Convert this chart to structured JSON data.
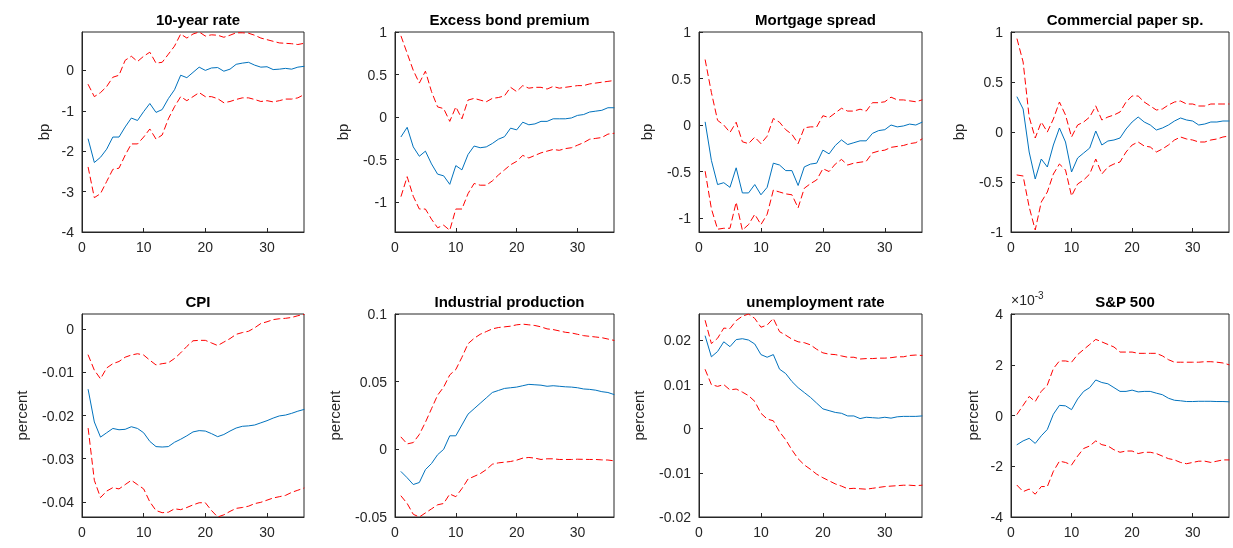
{
  "chart_data": [
    {
      "type": "line",
      "title": "10-year rate",
      "ylabel": "bp",
      "x": [
        1,
        2,
        3,
        4,
        5,
        6,
        7,
        8,
        9,
        10,
        11,
        12,
        13,
        14,
        15,
        16,
        17,
        18,
        19,
        20,
        21,
        22,
        23,
        24,
        25,
        26,
        27,
        28,
        29,
        30,
        31,
        32,
        33,
        34,
        35,
        36
      ],
      "xlim": [
        0,
        36
      ],
      "xticks": [
        0,
        10,
        20,
        30
      ],
      "ylim": [
        -4,
        0.95
      ],
      "yticks": [
        -4,
        -3,
        -2,
        -1,
        0
      ],
      "grid": false,
      "marker": "none",
      "series": [
        {
          "color": "#0072bd",
          "line_style": "solid",
          "values": [
            -1.7,
            -2.28,
            -2.15,
            -1.95,
            -1.65,
            -1.65,
            -1.4,
            -1.18,
            -1.24,
            -1.02,
            -0.82,
            -1.04,
            -0.97,
            -0.7,
            -0.48,
            -0.12,
            -0.18,
            -0.05,
            0.08,
            0,
            0.06,
            0.07,
            -0.02,
            0.03,
            0.15,
            0.18,
            0.2,
            0.13,
            0.08,
            0.09,
            0.02,
            0.03,
            0.05,
            0.03,
            0.08,
            0.1
          ]
        },
        {
          "color": "#ff0000",
          "line_style": "dashed",
          "values": [
            -0.35,
            -0.65,
            -0.55,
            -0.4,
            -0.17,
            -0.12,
            0.25,
            0.35,
            0.22,
            0.35,
            0.45,
            0.18,
            0.2,
            0.4,
            0.6,
            0.9,
            0.8,
            0.9,
            0.95,
            0.85,
            0.88,
            0.87,
            0.82,
            0.87,
            0.93,
            0.93,
            0.92,
            0.87,
            0.8,
            0.76,
            0.72,
            0.68,
            0.67,
            0.66,
            0.64,
            0.67
          ]
        },
        {
          "color": "#ff0000",
          "line_style": "dashed",
          "values": [
            -2.4,
            -3.15,
            -3.05,
            -2.75,
            -2.45,
            -2.42,
            -2.1,
            -1.82,
            -1.82,
            -1.65,
            -1.45,
            -1.7,
            -1.6,
            -1.2,
            -0.9,
            -0.65,
            -0.75,
            -0.65,
            -0.55,
            -0.65,
            -0.65,
            -0.7,
            -0.8,
            -0.77,
            -0.72,
            -0.68,
            -0.68,
            -0.72,
            -0.77,
            -0.75,
            -0.78,
            -0.75,
            -0.71,
            -0.71,
            -0.68,
            -0.6
          ]
        }
      ]
    },
    {
      "type": "line",
      "title": "Excess bond premium",
      "ylabel": "bp",
      "x": [
        1,
        2,
        3,
        4,
        5,
        6,
        7,
        8,
        9,
        10,
        11,
        12,
        13,
        14,
        15,
        16,
        17,
        18,
        19,
        20,
        21,
        22,
        23,
        24,
        25,
        26,
        27,
        28,
        29,
        30,
        31,
        32,
        33,
        34,
        35,
        36
      ],
      "xlim": [
        0,
        36
      ],
      "xticks": [
        0,
        10,
        20,
        30
      ],
      "ylim": [
        -1.35,
        1
      ],
      "yticks": [
        -1,
        -0.5,
        0,
        0.5,
        1
      ],
      "grid": false,
      "marker": "none",
      "series": [
        {
          "color": "#0072bd",
          "line_style": "solid",
          "values": [
            -0.23,
            -0.12,
            -0.35,
            -0.46,
            -0.4,
            -0.55,
            -0.67,
            -0.69,
            -0.79,
            -0.57,
            -0.62,
            -0.44,
            -0.34,
            -0.36,
            -0.35,
            -0.31,
            -0.26,
            -0.23,
            -0.13,
            -0.15,
            -0.06,
            -0.09,
            -0.08,
            -0.05,
            -0.05,
            -0.02,
            -0.02,
            -0.02,
            -0.01,
            0.02,
            0.03,
            0.06,
            0.07,
            0.08,
            0.11,
            0.11
          ]
        },
        {
          "color": "#ff0000",
          "line_style": "dashed",
          "values": [
            0.95,
            0.75,
            0.55,
            0.4,
            0.54,
            0.3,
            0.12,
            0.1,
            -0.05,
            0.12,
            -0.02,
            0.2,
            0.22,
            0.2,
            0.18,
            0.22,
            0.23,
            0.25,
            0.35,
            0.3,
            0.37,
            0.34,
            0.35,
            0.35,
            0.33,
            0.36,
            0.34,
            0.35,
            0.36,
            0.37,
            0.37,
            0.39,
            0.4,
            0.41,
            0.42,
            0.43
          ]
        },
        {
          "color": "#ff0000",
          "line_style": "dashed",
          "values": [
            -0.93,
            -0.7,
            -0.93,
            -1.08,
            -1.08,
            -1.2,
            -1.3,
            -1.27,
            -1.33,
            -1.08,
            -1.08,
            -0.9,
            -0.78,
            -0.8,
            -0.8,
            -0.75,
            -0.68,
            -0.62,
            -0.56,
            -0.52,
            -0.45,
            -0.48,
            -0.45,
            -0.42,
            -0.4,
            -0.38,
            -0.39,
            -0.37,
            -0.36,
            -0.33,
            -0.3,
            -0.26,
            -0.25,
            -0.24,
            -0.2,
            -0.19
          ]
        }
      ]
    },
    {
      "type": "line",
      "title": "Mortgage spread",
      "ylabel": "bp",
      "x": [
        1,
        2,
        3,
        4,
        5,
        6,
        7,
        8,
        9,
        10,
        11,
        12,
        13,
        14,
        15,
        16,
        17,
        18,
        19,
        20,
        21,
        22,
        23,
        24,
        25,
        26,
        27,
        28,
        29,
        30,
        31,
        32,
        33,
        34,
        35,
        36
      ],
      "xlim": [
        0,
        36
      ],
      "xticks": [
        0,
        10,
        20,
        30
      ],
      "ylim": [
        -1.15,
        1
      ],
      "yticks": [
        -1,
        -0.5,
        0,
        0.5,
        1
      ],
      "grid": false,
      "marker": "none",
      "series": [
        {
          "color": "#0072bd",
          "line_style": "solid",
          "values": [
            0.03,
            -0.38,
            -0.64,
            -0.62,
            -0.67,
            -0.46,
            -0.73,
            -0.73,
            -0.64,
            -0.75,
            -0.67,
            -0.41,
            -0.43,
            -0.49,
            -0.49,
            -0.65,
            -0.45,
            -0.42,
            -0.41,
            -0.27,
            -0.31,
            -0.22,
            -0.16,
            -0.21,
            -0.19,
            -0.17,
            -0.17,
            -0.09,
            -0.06,
            -0.05,
            0,
            -0.02,
            -0.01,
            0.01,
            0,
            0.03
          ]
        },
        {
          "color": "#ff0000",
          "line_style": "dashed",
          "values": [
            0.7,
            0.35,
            0.05,
            0,
            -0.08,
            0.03,
            -0.18,
            -0.2,
            -0.13,
            -0.2,
            -0.12,
            0.07,
            0.03,
            -0.05,
            -0.1,
            -0.2,
            -0.03,
            -0.02,
            -0.02,
            0.1,
            0.08,
            0.13,
            0.18,
            0.15,
            0.15,
            0.17,
            0.15,
            0.24,
            0.24,
            0.25,
            0.3,
            0.27,
            0.27,
            0.26,
            0.25,
            0.27
          ]
        },
        {
          "color": "#ff0000",
          "line_style": "dashed",
          "values": [
            -0.5,
            -0.9,
            -1.12,
            -1.11,
            -1.11,
            -0.83,
            -1.13,
            -1.07,
            -0.96,
            -1.07,
            -0.96,
            -0.7,
            -0.72,
            -0.74,
            -0.75,
            -0.89,
            -0.68,
            -0.63,
            -0.59,
            -0.47,
            -0.5,
            -0.42,
            -0.37,
            -0.43,
            -0.41,
            -0.4,
            -0.39,
            -0.3,
            -0.28,
            -0.27,
            -0.24,
            -0.23,
            -0.22,
            -0.2,
            -0.19,
            -0.15
          ]
        }
      ]
    },
    {
      "type": "line",
      "title": "Commercial paper sp.",
      "ylabel": "bp",
      "x": [
        1,
        2,
        3,
        4,
        5,
        6,
        7,
        8,
        9,
        10,
        11,
        12,
        13,
        14,
        15,
        16,
        17,
        18,
        19,
        20,
        21,
        22,
        23,
        24,
        25,
        26,
        27,
        28,
        29,
        30,
        31,
        32,
        33,
        34,
        35,
        36
      ],
      "xlim": [
        0,
        36
      ],
      "xticks": [
        0,
        10,
        20,
        30
      ],
      "ylim": [
        -1,
        1
      ],
      "yticks": [
        -1,
        -0.5,
        0,
        0.5,
        1
      ],
      "grid": false,
      "marker": "none",
      "series": [
        {
          "color": "#0072bd",
          "line_style": "solid",
          "values": [
            0.35,
            0.23,
            -0.2,
            -0.47,
            -0.27,
            -0.35,
            -0.13,
            0.04,
            -0.1,
            -0.4,
            -0.26,
            -0.21,
            -0.16,
            0.01,
            -0.13,
            -0.09,
            -0.08,
            -0.06,
            0.03,
            0.1,
            0.15,
            0.1,
            0.07,
            0.02,
            0.04,
            0.07,
            0.11,
            0.14,
            0.12,
            0.11,
            0.07,
            0.08,
            0.1,
            0.1,
            0.11,
            0.11
          ]
        },
        {
          "color": "#ff0000",
          "line_style": "dashed",
          "values": [
            0.93,
            0.7,
            0.15,
            -0.06,
            0.1,
            0,
            0.13,
            0.3,
            0.17,
            -0.05,
            0.07,
            0.1,
            0.15,
            0.26,
            0.12,
            0.15,
            0.17,
            0.2,
            0.3,
            0.36,
            0.36,
            0.3,
            0.26,
            0.22,
            0.23,
            0.27,
            0.3,
            0.31,
            0.28,
            0.28,
            0.26,
            0.26,
            0.28,
            0.28,
            0.28,
            0.28
          ]
        },
        {
          "color": "#ff0000",
          "line_style": "dashed",
          "values": [
            -0.43,
            -0.44,
            -0.75,
            -0.98,
            -0.7,
            -0.6,
            -0.42,
            -0.32,
            -0.38,
            -0.64,
            -0.52,
            -0.48,
            -0.42,
            -0.27,
            -0.42,
            -0.35,
            -0.32,
            -0.3,
            -0.2,
            -0.13,
            -0.1,
            -0.14,
            -0.15,
            -0.2,
            -0.17,
            -0.13,
            -0.08,
            -0.05,
            -0.07,
            -0.08,
            -0.1,
            -0.1,
            -0.08,
            -0.07,
            -0.05,
            -0.04
          ]
        }
      ]
    },
    {
      "type": "line",
      "title": "CPI",
      "ylabel": "percent",
      "x": [
        1,
        2,
        3,
        4,
        5,
        6,
        7,
        8,
        9,
        10,
        11,
        12,
        13,
        14,
        15,
        16,
        17,
        18,
        19,
        20,
        21,
        22,
        23,
        24,
        25,
        26,
        27,
        28,
        29,
        30,
        31,
        32,
        33,
        34,
        35,
        36
      ],
      "xlim": [
        0,
        36
      ],
      "xticks": [
        0,
        10,
        20,
        30
      ],
      "ylim": [
        -0.0435,
        0.0035
      ],
      "yticks": [
        -0.04,
        -0.03,
        -0.02,
        -0.01,
        0
      ],
      "grid": false,
      "marker": "none",
      "series": [
        {
          "color": "#0072bd",
          "line_style": "solid",
          "values": [
            -0.014,
            -0.0215,
            -0.025,
            -0.024,
            -0.023,
            -0.0233,
            -0.0232,
            -0.0226,
            -0.023,
            -0.024,
            -0.026,
            -0.0272,
            -0.0273,
            -0.0272,
            -0.0262,
            -0.0255,
            -0.0247,
            -0.0238,
            -0.0235,
            -0.0236,
            -0.0242,
            -0.0249,
            -0.0244,
            -0.0236,
            -0.0229,
            -0.0225,
            -0.0224,
            -0.0222,
            -0.0217,
            -0.0212,
            -0.0206,
            -0.0201,
            -0.0199,
            -0.0195,
            -0.019,
            -0.0186
          ]
        },
        {
          "color": "#ff0000",
          "line_style": "dashed",
          "values": [
            -0.006,
            -0.0095,
            -0.0115,
            -0.009,
            -0.008,
            -0.0075,
            -0.0065,
            -0.006,
            -0.0057,
            -0.006,
            -0.0072,
            -0.0083,
            -0.008,
            -0.0078,
            -0.0068,
            -0.0055,
            -0.004,
            -0.0027,
            -0.0026,
            -0.0026,
            -0.0032,
            -0.0038,
            -0.003,
            -0.0022,
            -0.0012,
            -0.0008,
            -0.0005,
            0.0003,
            0.0013,
            0.0017,
            0.0022,
            0.0024,
            0.0025,
            0.0027,
            0.0031,
            0.0034
          ]
        },
        {
          "color": "#ff0000",
          "line_style": "dashed",
          "values": [
            -0.023,
            -0.035,
            -0.039,
            -0.0375,
            -0.0367,
            -0.037,
            -0.036,
            -0.035,
            -0.036,
            -0.037,
            -0.04,
            -0.042,
            -0.0425,
            -0.0424,
            -0.0416,
            -0.0418,
            -0.0413,
            -0.0407,
            -0.0402,
            -0.0402,
            -0.042,
            -0.0435,
            -0.043,
            -0.0422,
            -0.0415,
            -0.0413,
            -0.041,
            -0.0404,
            -0.0401,
            -0.0396,
            -0.0391,
            -0.0388,
            -0.0385,
            -0.0378,
            -0.0373,
            -0.0368
          ]
        }
      ]
    },
    {
      "type": "line",
      "title": "Industrial production",
      "ylabel": "percent",
      "x": [
        1,
        2,
        3,
        4,
        5,
        6,
        7,
        8,
        9,
        10,
        11,
        12,
        13,
        14,
        15,
        16,
        17,
        18,
        19,
        20,
        21,
        22,
        23,
        24,
        25,
        26,
        27,
        28,
        29,
        30,
        31,
        32,
        33,
        34,
        35,
        36
      ],
      "xlim": [
        0,
        36
      ],
      "xticks": [
        0,
        10,
        20,
        30
      ],
      "ylim": [
        -0.05,
        0.1
      ],
      "yticks": [
        -0.05,
        0,
        0.05,
        0.1
      ],
      "grid": false,
      "marker": "none",
      "series": [
        {
          "color": "#0072bd",
          "line_style": "solid",
          "values": [
            -0.0165,
            -0.021,
            -0.026,
            -0.0245,
            -0.015,
            -0.0105,
            -0.004,
            0,
            0.01,
            0.01,
            0.018,
            0.026,
            0.03,
            0.034,
            0.038,
            0.042,
            0.0435,
            0.045,
            0.0455,
            0.046,
            0.047,
            0.048,
            0.0477,
            0.0474,
            0.0466,
            0.047,
            0.0466,
            0.0462,
            0.046,
            0.0455,
            0.0446,
            0.0443,
            0.0437,
            0.0426,
            0.042,
            0.0405
          ]
        },
        {
          "color": "#ff0000",
          "line_style": "dashed",
          "values": [
            0.009,
            0.004,
            0.005,
            0.011,
            0.02,
            0.03,
            0.04,
            0.046,
            0.055,
            0.059,
            0.068,
            0.078,
            0.082,
            0.085,
            0.087,
            0.089,
            0.09,
            0.0905,
            0.091,
            0.092,
            0.0925,
            0.092,
            0.0915,
            0.0905,
            0.089,
            0.0885,
            0.0875,
            0.0865,
            0.086,
            0.085,
            0.084,
            0.0835,
            0.083,
            0.0825,
            0.0815,
            0.0805
          ]
        },
        {
          "color": "#ff0000",
          "line_style": "dashed",
          "values": [
            -0.0345,
            -0.04,
            -0.048,
            -0.05,
            -0.047,
            -0.044,
            -0.041,
            -0.04,
            -0.033,
            -0.035,
            -0.029,
            -0.022,
            -0.02,
            -0.018,
            -0.015,
            -0.011,
            -0.01,
            -0.0095,
            -0.009,
            -0.008,
            -0.0065,
            -0.006,
            -0.0065,
            -0.0075,
            -0.007,
            -0.007,
            -0.0075,
            -0.0075,
            -0.0075,
            -0.0073,
            -0.0074,
            -0.0075,
            -0.0075,
            -0.0078,
            -0.0079,
            -0.0085
          ]
        }
      ]
    },
    {
      "type": "line",
      "title": "unemployment rate",
      "ylabel": "percent",
      "x": [
        1,
        2,
        3,
        4,
        5,
        6,
        7,
        8,
        9,
        10,
        11,
        12,
        13,
        14,
        15,
        16,
        17,
        18,
        19,
        20,
        21,
        22,
        23,
        24,
        25,
        26,
        27,
        28,
        29,
        30,
        31,
        32,
        33,
        34,
        35,
        36
      ],
      "xlim": [
        0,
        36
      ],
      "xticks": [
        0,
        10,
        20,
        30
      ],
      "ylim": [
        -0.02,
        0.026
      ],
      "yticks": [
        -0.02,
        -0.01,
        0,
        0.01,
        0.02
      ],
      "grid": false,
      "marker": "none",
      "series": [
        {
          "color": "#0072bd",
          "line_style": "solid",
          "values": [
            0.021,
            0.0163,
            0.0175,
            0.0197,
            0.0186,
            0.0202,
            0.0204,
            0.0201,
            0.0192,
            0.0168,
            0.0162,
            0.0168,
            0.0135,
            0.0125,
            0.0107,
            0.0093,
            0.0082,
            0.0071,
            0.0058,
            0.0045,
            0.0041,
            0.0037,
            0.0035,
            0.0029,
            0.0029,
            0.0023,
            0.0026,
            0.0025,
            0.0024,
            0.0026,
            0.0024,
            0.0027,
            0.0028,
            0.0028,
            0.0028,
            0.0029
          ]
        },
        {
          "color": "#ff0000",
          "line_style": "dashed",
          "values": [
            0.0245,
            0.0193,
            0.0205,
            0.0228,
            0.0227,
            0.0245,
            0.0255,
            0.026,
            0.025,
            0.023,
            0.0235,
            0.025,
            0.022,
            0.0212,
            0.0203,
            0.0197,
            0.0195,
            0.019,
            0.018,
            0.0172,
            0.0169,
            0.0168,
            0.0165,
            0.0162,
            0.0162,
            0.0158,
            0.0159,
            0.0159,
            0.016,
            0.016,
            0.0161,
            0.0163,
            0.0163,
            0.0166,
            0.0167,
            0.0166
          ]
        },
        {
          "color": "#ff0000",
          "line_style": "dashed",
          "values": [
            0.0134,
            0.01,
            0.0096,
            0.01,
            0.0088,
            0.009,
            0.0083,
            0.0075,
            0.0062,
            0.0035,
            0.0022,
            0.0018,
            -0.0007,
            -0.0025,
            -0.0048,
            -0.0068,
            -0.0082,
            -0.0092,
            -0.0103,
            -0.0111,
            -0.0118,
            -0.0125,
            -0.013,
            -0.0136,
            -0.0135,
            -0.0136,
            -0.0137,
            -0.0135,
            -0.0133,
            -0.0131,
            -0.013,
            -0.0129,
            -0.0128,
            -0.0128,
            -0.0129,
            -0.0128
          ]
        }
      ]
    },
    {
      "type": "line",
      "title": "S&P 500",
      "ylabel": "percent",
      "annotations": [
        "×10$^{-3}$"
      ],
      "x": [
        1,
        2,
        3,
        4,
        5,
        6,
        7,
        8,
        9,
        10,
        11,
        12,
        13,
        14,
        15,
        16,
        17,
        18,
        19,
        20,
        21,
        22,
        23,
        24,
        25,
        26,
        27,
        28,
        29,
        30,
        31,
        32,
        33,
        34,
        35,
        36
      ],
      "xlim": [
        0,
        36
      ],
      "xticks": [
        0,
        10,
        20,
        30
      ],
      "ylim": [
        -4,
        4
      ],
      "yticks": [
        -4,
        -2,
        0,
        2,
        4
      ],
      "grid": false,
      "marker": "none",
      "series": [
        {
          "color": "#0072bd",
          "line_style": "solid",
          "values": [
            -1.15,
            -1,
            -0.9,
            -1.1,
            -0.8,
            -0.55,
            0.05,
            0.4,
            0.38,
            0.23,
            0.65,
            0.95,
            1.1,
            1.4,
            1.3,
            1.25,
            1.1,
            0.95,
            0.95,
            1,
            0.93,
            0.95,
            0.95,
            0.88,
            0.82,
            0.68,
            0.6,
            0.58,
            0.55,
            0.55,
            0.56,
            0.56,
            0.56,
            0.55,
            0.55,
            0.54
          ]
        },
        {
          "color": "#ff0000",
          "line_style": "dashed",
          "values": [
            0.05,
            0.4,
            0.75,
            0.55,
            0.95,
            1.2,
            1.85,
            2.15,
            2.15,
            2.1,
            2.4,
            2.6,
            2.8,
            3,
            2.9,
            2.8,
            2.7,
            2.5,
            2.5,
            2.5,
            2.45,
            2.45,
            2.45,
            2.45,
            2.35,
            2.2,
            2.1,
            2.1,
            2.1,
            2.1,
            2.1,
            2.12,
            2.12,
            2.1,
            2.07,
            2
          ]
        },
        {
          "color": "#ff0000",
          "line_style": "dashed",
          "values": [
            -2.75,
            -3,
            -2.9,
            -3.1,
            -2.8,
            -2.8,
            -2.2,
            -1.8,
            -1.85,
            -1.95,
            -1.6,
            -1.3,
            -1.2,
            -1,
            -1.15,
            -1.2,
            -1.35,
            -1.45,
            -1.4,
            -1.4,
            -1.5,
            -1.45,
            -1.45,
            -1.5,
            -1.6,
            -1.7,
            -1.75,
            -1.85,
            -1.9,
            -1.85,
            -1.8,
            -1.8,
            -1.85,
            -1.8,
            -1.75,
            -1.75
          ]
        }
      ]
    }
  ]
}
